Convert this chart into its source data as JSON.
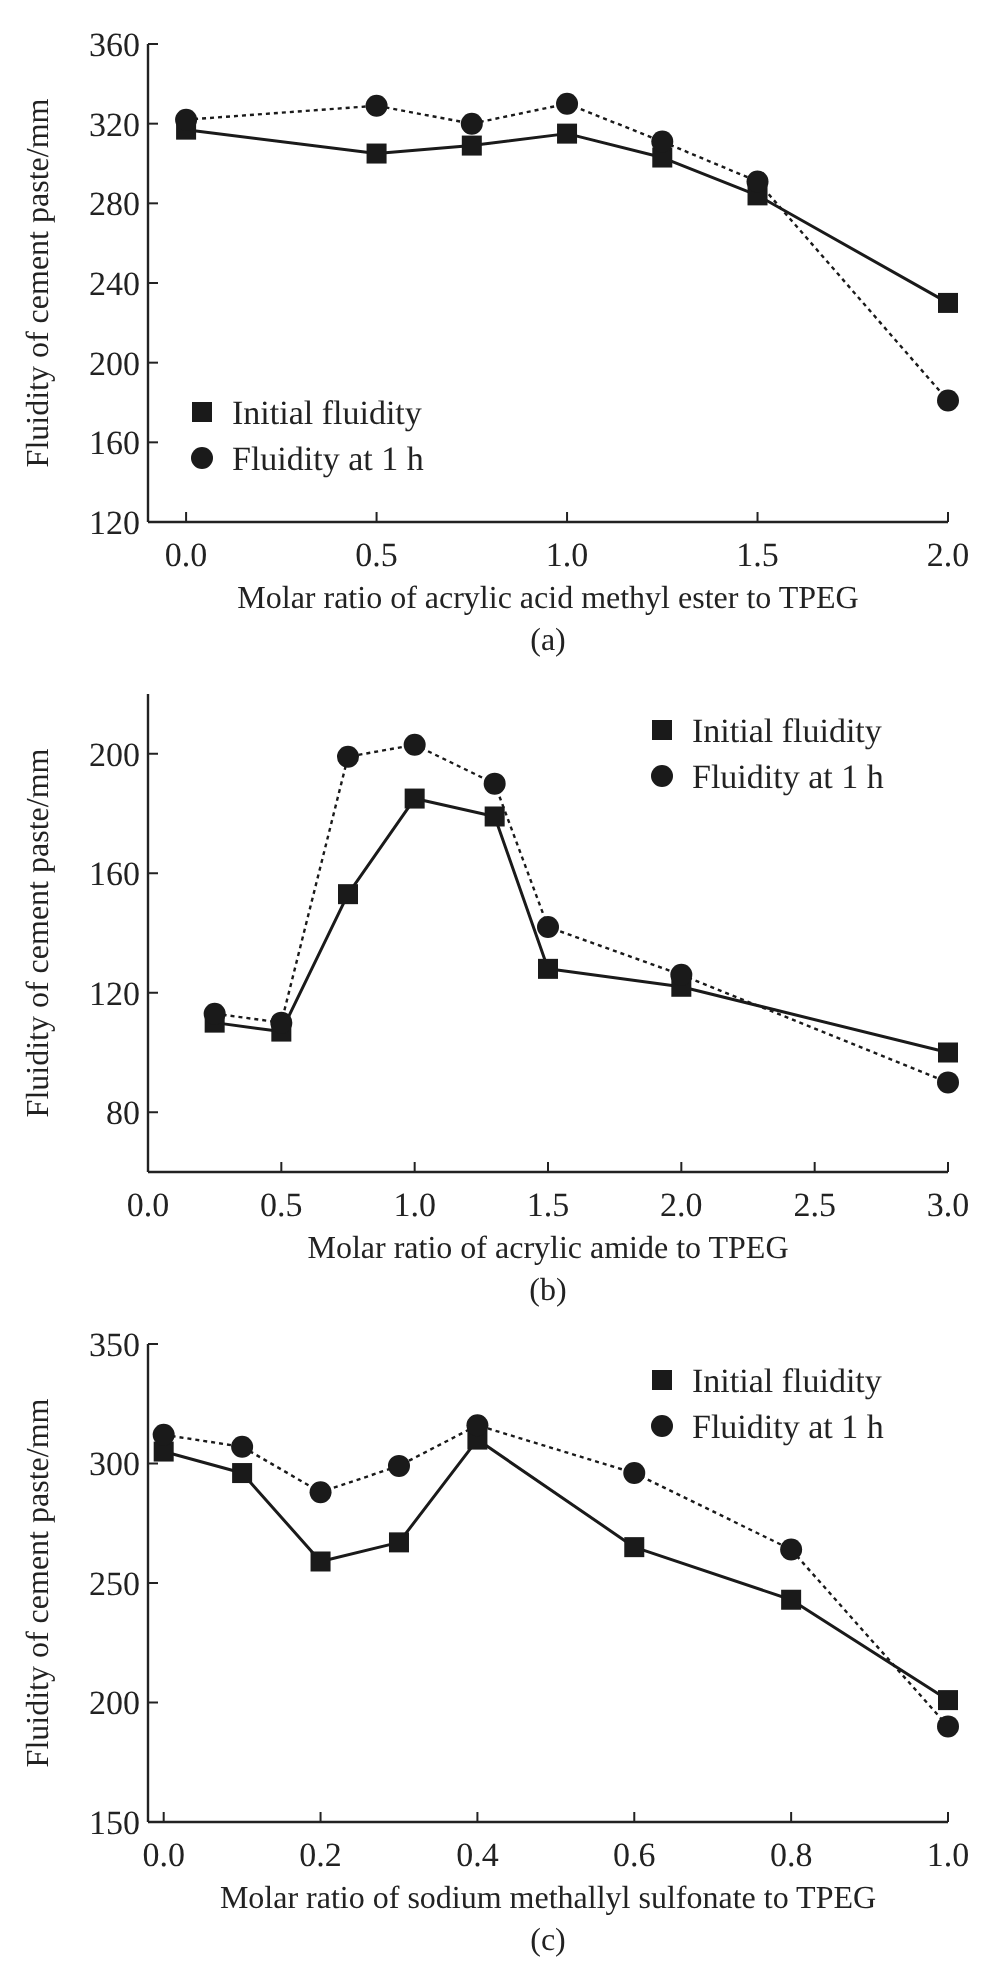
{
  "chart_data": [
    {
      "type": "line",
      "xlabel": "Molar ratio of acrylic acid methyl ester to TPEG",
      "ylabel": "Fluidity of cement paste/mm",
      "annotations": [
        "(a)"
      ],
      "x": [
        0,
        0.5,
        0.75,
        1.0,
        1.25,
        1.5,
        2.0
      ],
      "series": [
        {
          "name": "Initial fluidity",
          "color": "#1a1a1a",
          "marker": "square",
          "line_style": "solid",
          "values": [
            317,
            305,
            309,
            315,
            303,
            284,
            230
          ]
        },
        {
          "name": "Fluidity at 1 h",
          "color": "#1a1a1a",
          "marker": "circle",
          "line_style": "dotted",
          "values": [
            322,
            329,
            320,
            330,
            311,
            291,
            181
          ]
        }
      ],
      "xlim": [
        -0.1,
        2.0
      ],
      "xticks": [
        {
          "value": 0,
          "label": "0.0"
        },
        0.5,
        {
          "value": 1,
          "label": "1.0"
        },
        1.5,
        {
          "value": 2,
          "label": "2.0"
        }
      ],
      "ylim": [
        120,
        360
      ],
      "yticks": [
        120,
        160,
        200,
        240,
        280,
        320,
        360
      ],
      "legend": "bottom left",
      "grid": false
    },
    {
      "type": "line",
      "xlabel": "Molar ratio of acrylic amide to TPEG",
      "ylabel": "Fluidity of cement paste/mm",
      "annotations": [
        "(b)"
      ],
      "x": [
        0.25,
        0.5,
        0.75,
        1.0,
        1.3,
        1.5,
        2.0,
        3.0
      ],
      "series": [
        {
          "name": "Initial fluidity",
          "color": "#1a1a1a",
          "marker": "square",
          "line_style": "solid",
          "values": [
            110,
            107,
            153,
            185,
            179,
            128,
            122,
            100
          ]
        },
        {
          "name": "Fluidity at 1 h",
          "color": "#1a1a1a",
          "marker": "circle",
          "line_style": "dotted",
          "values": [
            113,
            110,
            199,
            203,
            190,
            142,
            126,
            90
          ]
        }
      ],
      "xlim": [
        0,
        3.0
      ],
      "xticks": [
        {
          "value": 0,
          "label": "0.0"
        },
        0.5,
        {
          "value": 1,
          "label": "1.0"
        },
        1.5,
        {
          "value": 2,
          "label": "2.0"
        },
        2.5,
        {
          "value": 3,
          "label": "3.0"
        }
      ],
      "ylim": [
        60,
        220
      ],
      "yticks": [
        80,
        120,
        160,
        200
      ],
      "legend": "top right",
      "grid": false
    },
    {
      "type": "line",
      "xlabel": "Molar ratio of sodium methallyl sulfonate to TPEG",
      "ylabel": "Fluidity of cement paste/mm",
      "annotations": [
        "(c)"
      ],
      "x": [
        0,
        0.1,
        0.2,
        0.3,
        0.4,
        0.6,
        0.8,
        1.0
      ],
      "series": [
        {
          "name": "Initial fluidity",
          "color": "#1a1a1a",
          "marker": "square",
          "line_style": "solid",
          "values": [
            305,
            296,
            259,
            267,
            310,
            265,
            243,
            201
          ]
        },
        {
          "name": "Fluidity at 1 h",
          "color": "#1a1a1a",
          "marker": "circle",
          "line_style": "dotted",
          "values": [
            312,
            307,
            288,
            299,
            316,
            296,
            264,
            190
          ]
        }
      ],
      "xlim": [
        -0.02,
        1.0
      ],
      "xticks": [
        {
          "value": 0,
          "label": "0.0"
        },
        0.2,
        0.4,
        0.6,
        0.8,
        {
          "value": 1,
          "label": "1.0"
        }
      ],
      "ylim": [
        150,
        350
      ],
      "yticks": [
        150,
        200,
        250,
        300,
        350
      ],
      "legend": "top right",
      "grid": false
    }
  ]
}
